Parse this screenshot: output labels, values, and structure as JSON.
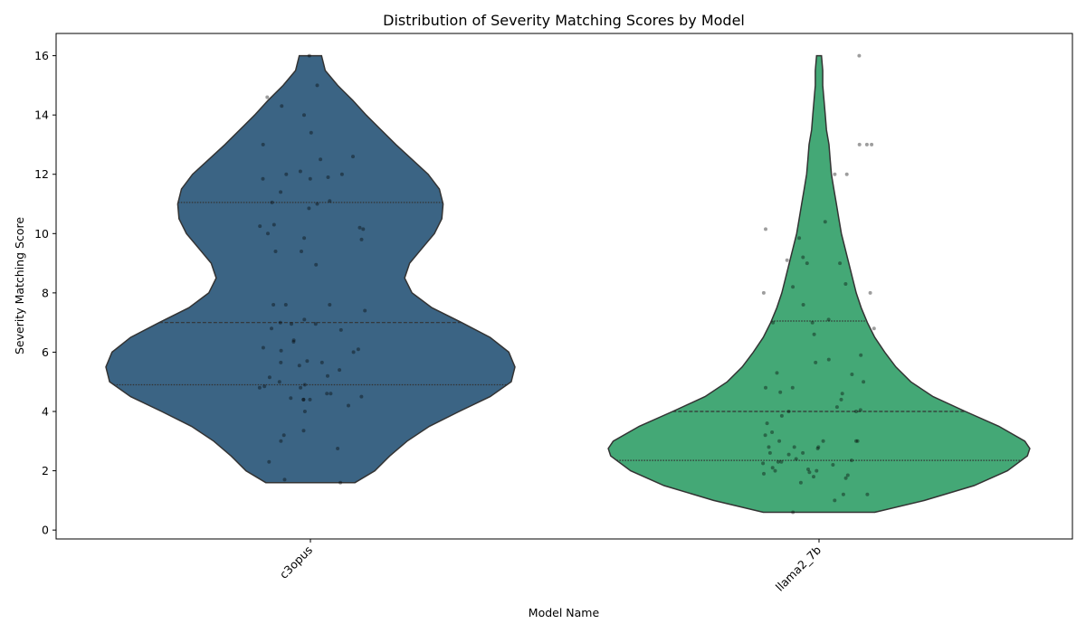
{
  "chart_data": {
    "type": "violin",
    "title": "Distribution of Severity Matching Scores by Model",
    "xlabel": "Model Name",
    "ylabel": "Severity Matching Score",
    "ylim": [
      -0.3,
      16.75
    ],
    "yticks": [
      0,
      2,
      4,
      6,
      8,
      10,
      12,
      14,
      16
    ],
    "grid": false,
    "legend": "none",
    "categories": [
      "c3opus",
      "llama2_7b"
    ],
    "series": [
      {
        "category": "c3opus",
        "color": "#3b6484",
        "range": [
          1.6,
          16
        ],
        "quartiles": [
          4.9,
          7.0,
          11.05
        ],
        "density_profile": [
          [
            1.6,
            0.36
          ],
          [
            2.0,
            0.52
          ],
          [
            2.5,
            0.64
          ],
          [
            3.0,
            0.78
          ],
          [
            3.5,
            0.96
          ],
          [
            4.0,
            1.2
          ],
          [
            4.5,
            1.45
          ],
          [
            5.0,
            1.62
          ],
          [
            5.5,
            1.65
          ],
          [
            6.0,
            1.6
          ],
          [
            6.5,
            1.45
          ],
          [
            7.0,
            1.22
          ],
          [
            7.5,
            0.98
          ],
          [
            8.0,
            0.82
          ],
          [
            8.5,
            0.76
          ],
          [
            9.0,
            0.8
          ],
          [
            9.5,
            0.9
          ],
          [
            10.0,
            1.0
          ],
          [
            10.5,
            1.06
          ],
          [
            11.0,
            1.07
          ],
          [
            11.5,
            1.04
          ],
          [
            12.0,
            0.95
          ],
          [
            12.5,
            0.82
          ],
          [
            13.0,
            0.69
          ],
          [
            13.5,
            0.57
          ],
          [
            14.0,
            0.45
          ],
          [
            14.5,
            0.34
          ],
          [
            15.0,
            0.22
          ],
          [
            15.5,
            0.12
          ],
          [
            16.0,
            0.09
          ]
        ],
        "points": [
          16,
          15.0,
          14.6,
          14.3,
          14.0,
          13.4,
          13.0,
          12.6,
          12.5,
          12.1,
          12.0,
          12.0,
          11.9,
          11.85,
          11.85,
          11.4,
          11.1,
          11.05,
          11.0,
          10.85,
          10.3,
          10.25,
          10.2,
          10.15,
          10.0,
          9.85,
          9.8,
          9.4,
          9.4,
          8.95,
          7.6,
          7.6,
          7.6,
          7.4,
          7.1,
          7.0,
          6.95,
          6.95,
          6.8,
          6.75,
          6.4,
          6.35,
          6.15,
          6.1,
          6.05,
          6.0,
          5.7,
          5.65,
          5.65,
          5.55,
          5.4,
          5.2,
          5.15,
          5.0,
          4.9,
          4.85,
          4.8,
          4.8,
          4.6,
          4.6,
          4.5,
          4.45,
          4.4,
          4.4,
          4.4,
          4.2,
          4.0,
          3.35,
          3.2,
          3.0,
          2.75,
          2.3,
          1.7,
          1.6
        ]
      },
      {
        "category": "llama2_7b",
        "color": "#44a876",
        "range": [
          0.6,
          16
        ],
        "quartiles": [
          2.35,
          4.0,
          7.05
        ],
        "density_profile": [
          [
            0.6,
            0.45
          ],
          [
            1.0,
            0.85
          ],
          [
            1.5,
            1.25
          ],
          [
            2.0,
            1.52
          ],
          [
            2.5,
            1.68
          ],
          [
            2.75,
            1.7
          ],
          [
            3.0,
            1.66
          ],
          [
            3.5,
            1.45
          ],
          [
            4.0,
            1.18
          ],
          [
            4.5,
            0.92
          ],
          [
            5.0,
            0.74
          ],
          [
            5.5,
            0.62
          ],
          [
            6.0,
            0.53
          ],
          [
            6.5,
            0.45
          ],
          [
            7.0,
            0.39
          ],
          [
            7.5,
            0.34
          ],
          [
            8.0,
            0.3
          ],
          [
            8.5,
            0.27
          ],
          [
            9.0,
            0.24
          ],
          [
            9.5,
            0.21
          ],
          [
            10.0,
            0.18
          ],
          [
            10.5,
            0.16
          ],
          [
            11.0,
            0.14
          ],
          [
            11.5,
            0.12
          ],
          [
            12.0,
            0.1
          ],
          [
            12.5,
            0.09
          ],
          [
            13.0,
            0.08
          ],
          [
            13.5,
            0.06
          ],
          [
            14.0,
            0.05
          ],
          [
            14.5,
            0.04
          ],
          [
            15.0,
            0.03
          ],
          [
            15.5,
            0.03
          ],
          [
            16.0,
            0.02
          ]
        ],
        "points": [
          16,
          13.0,
          13.0,
          13.0,
          12.0,
          12.0,
          10.4,
          10.15,
          9.85,
          9.2,
          9.1,
          9.0,
          9.0,
          8.3,
          8.2,
          8.0,
          8.0,
          7.6,
          7.1,
          7.0,
          7.0,
          6.8,
          6.6,
          5.9,
          5.75,
          5.65,
          5.3,
          5.25,
          5.0,
          4.8,
          4.8,
          4.65,
          4.6,
          4.4,
          4.15,
          4.05,
          4.0,
          4.0,
          3.85,
          3.6,
          3.3,
          3.2,
          3.0,
          3.0,
          3.0,
          3.0,
          2.8,
          2.8,
          2.8,
          2.75,
          2.6,
          2.6,
          2.55,
          2.4,
          2.35,
          2.3,
          2.3,
          2.25,
          2.2,
          2.1,
          2.05,
          2.0,
          2.0,
          1.95,
          1.9,
          1.85,
          1.8,
          1.75,
          1.6,
          1.2,
          1.2,
          1.0,
          0.6
        ]
      }
    ]
  }
}
